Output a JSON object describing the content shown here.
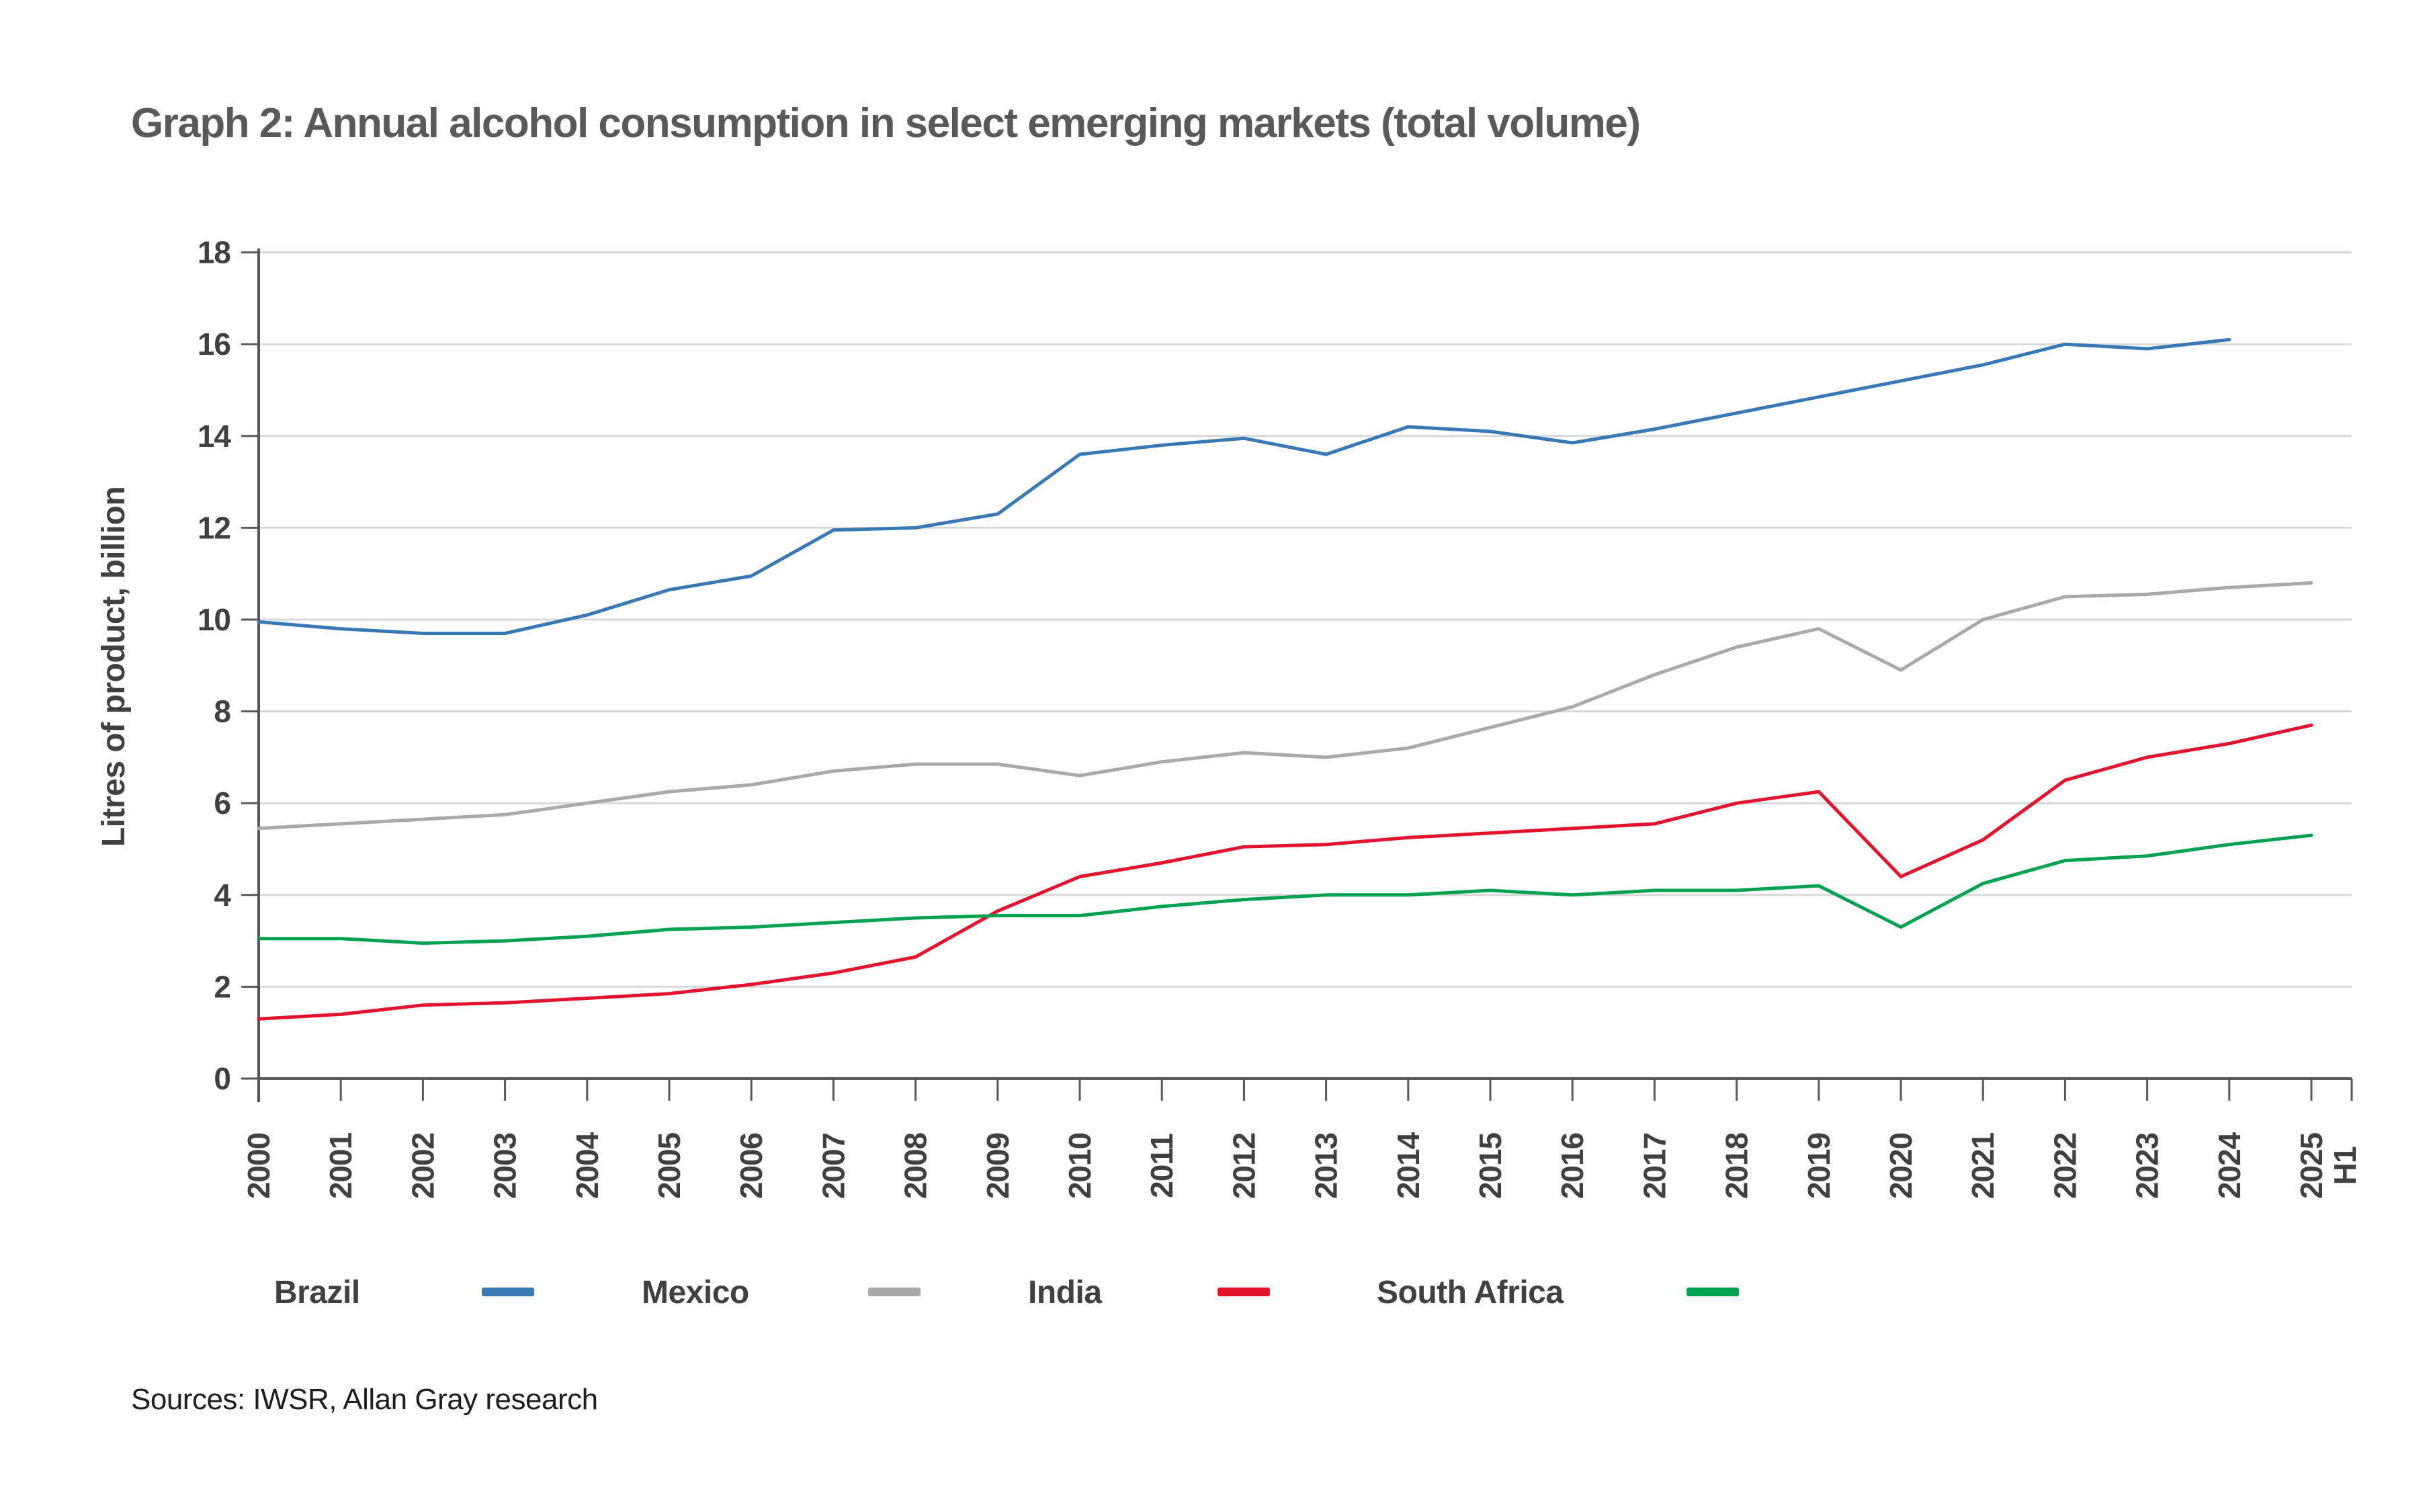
{
  "source": "Sources: IWSR, Allan Gray research",
  "chart_data": {
    "type": "line",
    "title": "Graph 2: Annual alcohol consumption in select emerging markets (total volume)",
    "xlabel": "",
    "ylabel": "Litres of product, billion",
    "ylim": [
      0,
      18
    ],
    "yticks": [
      0,
      2,
      4,
      6,
      8,
      10,
      12,
      14,
      16,
      18
    ],
    "grid": "horizontal",
    "legend_position": "bottom",
    "categories": [
      "2000",
      "2001",
      "2002",
      "2003",
      "2004",
      "2005",
      "2006",
      "2007",
      "2008",
      "2009",
      "2010",
      "2011",
      "2012",
      "2013",
      "2014",
      "2015",
      "2016",
      "2017",
      "2018",
      "2019",
      "2020",
      "2021",
      "2022",
      "2023",
      "2024",
      "2025 H1"
    ],
    "series": [
      {
        "name": "Brazil",
        "color": "#3778B5",
        "values": [
          9.95,
          9.8,
          9.7,
          9.7,
          10.1,
          10.65,
          10.95,
          11.95,
          12.0,
          12.3,
          13.6,
          13.8,
          13.95,
          13.6,
          14.2,
          14.1,
          13.85,
          14.15,
          14.5,
          14.85,
          15.2,
          15.55,
          16.0,
          15.9,
          16.1,
          null
        ]
      },
      {
        "name": "Mexico",
        "color": "#A9A9A9",
        "values": [
          5.45,
          5.55,
          5.65,
          5.75,
          6.0,
          6.25,
          6.4,
          6.7,
          6.85,
          6.85,
          6.6,
          6.9,
          7.1,
          7.0,
          7.2,
          7.65,
          8.1,
          8.8,
          9.4,
          9.8,
          8.9,
          10.0,
          10.5,
          10.55,
          10.7,
          10.8
        ]
      },
      {
        "name": "India",
        "color": "#E3132C",
        "values": [
          1.3,
          1.4,
          1.6,
          1.65,
          1.75,
          1.85,
          2.05,
          2.3,
          2.65,
          3.65,
          4.4,
          4.7,
          5.05,
          5.1,
          5.25,
          5.35,
          5.45,
          5.55,
          6.0,
          6.25,
          4.4,
          5.2,
          6.5,
          7.0,
          7.3,
          7.7
        ]
      },
      {
        "name": "South Africa",
        "color": "#00A250",
        "values": [
          3.05,
          3.05,
          2.95,
          3.0,
          3.1,
          3.25,
          3.3,
          3.4,
          3.5,
          3.55,
          3.55,
          3.75,
          3.9,
          4.0,
          4.0,
          4.1,
          4.0,
          4.1,
          4.1,
          4.2,
          3.3,
          4.25,
          4.75,
          4.85,
          5.1,
          5.3
        ]
      }
    ],
    "axis_color": "#595959",
    "gridline_color": "#D8D8D8",
    "tick_label_color": "#404040"
  }
}
